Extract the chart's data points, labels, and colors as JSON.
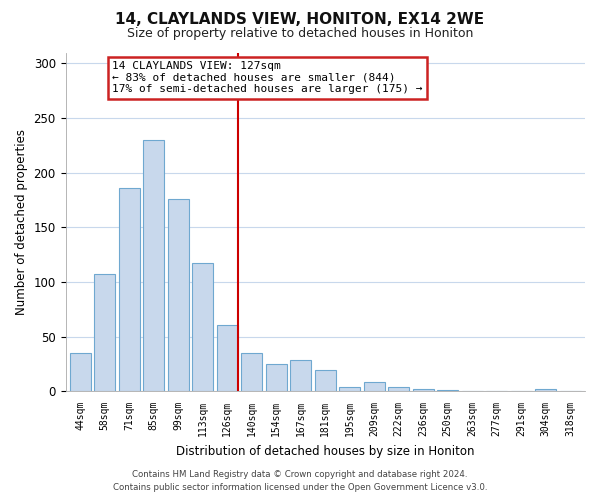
{
  "title": "14, CLAYLANDS VIEW, HONITON, EX14 2WE",
  "subtitle": "Size of property relative to detached houses in Honiton",
  "xlabel": "Distribution of detached houses by size in Honiton",
  "ylabel": "Number of detached properties",
  "bar_labels": [
    "44sqm",
    "58sqm",
    "71sqm",
    "85sqm",
    "99sqm",
    "113sqm",
    "126sqm",
    "140sqm",
    "154sqm",
    "167sqm",
    "181sqm",
    "195sqm",
    "209sqm",
    "222sqm",
    "236sqm",
    "250sqm",
    "263sqm",
    "277sqm",
    "291sqm",
    "304sqm",
    "318sqm"
  ],
  "bar_values": [
    35,
    107,
    186,
    230,
    176,
    117,
    61,
    35,
    25,
    29,
    19,
    4,
    8,
    4,
    2,
    1,
    0,
    0,
    0,
    2,
    0
  ],
  "bar_color": "#c8d8ec",
  "bar_edge_color": "#6fa8d0",
  "highlight_index": 6,
  "highlight_line_color": "#cc0000",
  "ylim": [
    0,
    310
  ],
  "yticks": [
    0,
    50,
    100,
    150,
    200,
    250,
    300
  ],
  "annotation_title": "14 CLAYLANDS VIEW: 127sqm",
  "annotation_line1": "← 83% of detached houses are smaller (844)",
  "annotation_line2": "17% of semi-detached houses are larger (175) →",
  "footer_line1": "Contains HM Land Registry data © Crown copyright and database right 2024.",
  "footer_line2": "Contains public sector information licensed under the Open Government Licence v3.0.",
  "background_color": "#ffffff",
  "grid_color": "#c8d8ec"
}
